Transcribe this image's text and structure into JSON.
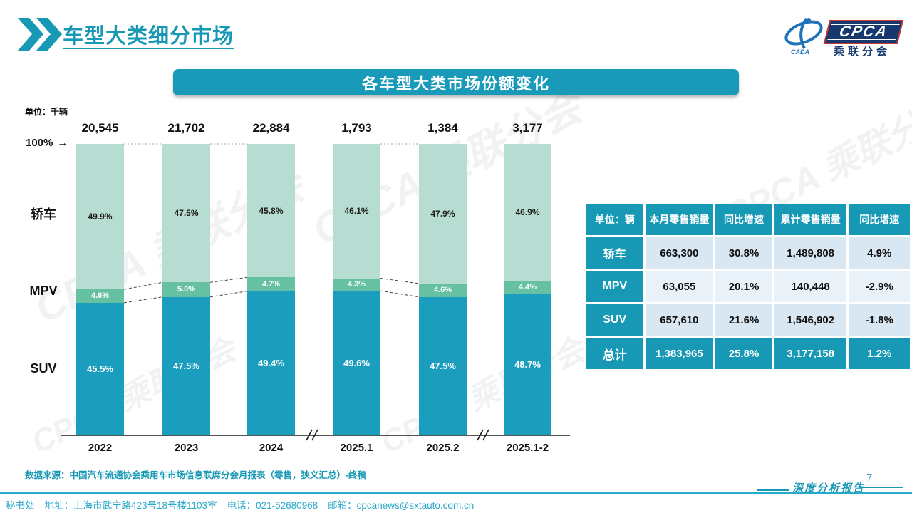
{
  "page": {
    "title": "车型大类细分市场",
    "page_number": "7",
    "report_label": "深度分析报告",
    "watermark": "CPCA 乘联分会"
  },
  "logo": {
    "cpca": "CPCA",
    "cada": "CADA",
    "subtitle": "乘联分会"
  },
  "chart": {
    "banner_title": "各车型大类市场份额变化",
    "unit_label": "单位：千辆",
    "axis_100_label": "100%",
    "axis_100_arrow": "→",
    "category_labels": [
      "轿车",
      "MPV",
      "SUV"
    ],
    "source": "数据来源：中国汽车流通协会乘用车市场信息联席分会月报表（零售，狭义汇总）-终稿"
  },
  "chart_data": {
    "type": "bar",
    "stacked": true,
    "unit": "千辆",
    "title": "各车型大类市场份额变化",
    "categories": [
      "2022",
      "2023",
      "2024",
      "2025.1",
      "2025.2",
      "2025.1-2"
    ],
    "totals": [
      "20,545",
      "21,702",
      "22,884",
      "1,793",
      "1,384",
      "3,177"
    ],
    "series": [
      {
        "name": "轿车",
        "color": "#b7dcd2",
        "values": [
          49.9,
          47.5,
          45.8,
          46.1,
          47.9,
          46.9
        ],
        "labels": [
          "49.9%",
          "47.5%",
          "45.8%",
          "46.1%",
          "47.9%",
          "46.9%"
        ]
      },
      {
        "name": "MPV",
        "color": "#66c0a2",
        "values": [
          4.6,
          5.0,
          4.7,
          4.3,
          4.6,
          4.4
        ],
        "labels": [
          "4.6%",
          "5.0%",
          "4.7%",
          "4.3%",
          "4.6%",
          "4.4%"
        ]
      },
      {
        "name": "SUV",
        "color": "#1b9dbd",
        "values": [
          45.5,
          47.5,
          49.4,
          49.6,
          47.5,
          48.7
        ],
        "labels": [
          "45.5%",
          "47.5%",
          "49.4%",
          "49.6%",
          "47.5%",
          "48.7%"
        ]
      }
    ],
    "ylim": [
      0,
      100
    ],
    "grid": false,
    "legend_position": "left-axis-labels",
    "axis_breaks_after": [
      "2024",
      "2025.2"
    ],
    "connected_pairs": [
      [
        0,
        1
      ],
      [
        1,
        2
      ],
      [
        3,
        4
      ]
    ]
  },
  "table": {
    "unit_header": "单位：辆",
    "columns": [
      "本月零售销量",
      "同比增速",
      "累计零售销量",
      "同比增速"
    ],
    "rows": [
      {
        "label": "轿车",
        "values": [
          "663,300",
          "30.8%",
          "1,489,808",
          "4.9%"
        ],
        "is_total": false
      },
      {
        "label": "MPV",
        "values": [
          "63,055",
          "20.1%",
          "140,448",
          "-2.9%"
        ],
        "is_total": false
      },
      {
        "label": "SUV",
        "values": [
          "657,610",
          "21.6%",
          "1,546,902",
          "-1.8%"
        ],
        "is_total": false
      },
      {
        "label": "总计",
        "values": [
          "1,383,965",
          "25.8%",
          "3,177,158",
          "1.2%"
        ],
        "is_total": true
      }
    ]
  },
  "footer": {
    "secretariat": "秘书处",
    "address": "地址：上海市武宁路423号18号楼1103室",
    "phone": "电话：021-52680968",
    "email": "邮箱：cpcanews@sxtauto.com.cn"
  },
  "colors": {
    "teal": "#1799b5",
    "banner": "#199ab9",
    "navy": "#16386e",
    "red": "#c8372d",
    "row_a": "#d9e7f3",
    "row_b": "#eaf2f9",
    "footer_teal": "#2aa9cb"
  }
}
